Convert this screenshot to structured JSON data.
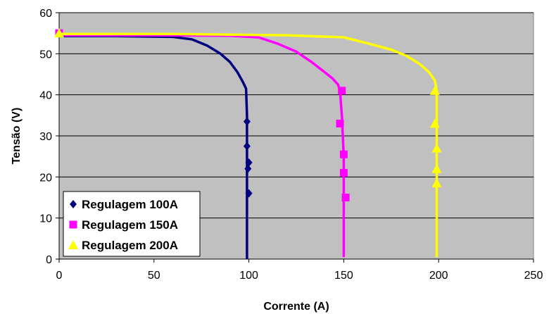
{
  "chart_data": {
    "type": "line",
    "xlabel": "Corrente (A)",
    "ylabel": "Tensão (V)",
    "xlim": [
      0,
      250
    ],
    "ylim": [
      0,
      60
    ],
    "xticks": [
      "0",
      "50",
      "100",
      "150",
      "200",
      "250"
    ],
    "yticks": [
      "0",
      "10",
      "20",
      "30",
      "40",
      "50",
      "60"
    ],
    "grid": "horizontal",
    "plot_background": "#c0c0c0",
    "legend_position": "bottom-left",
    "series": [
      {
        "name": "Regulagem 100A",
        "color": "#000080",
        "marker": "diamond",
        "curve": [
          [
            0,
            54.3
          ],
          [
            30,
            54.3
          ],
          [
            60,
            54.1
          ],
          [
            70,
            53.5
          ],
          [
            78,
            52.0
          ],
          [
            85,
            50.0
          ],
          [
            90,
            48.0
          ],
          [
            94,
            45.5
          ],
          [
            97,
            43.0
          ],
          [
            98.5,
            41.5
          ],
          [
            99,
            35.0
          ],
          [
            99,
            25.0
          ],
          [
            99,
            15.0
          ],
          [
            99,
            5.0
          ],
          [
            99,
            0
          ]
        ],
        "markers": [
          [
            99,
            33.5
          ],
          [
            99,
            27.5
          ],
          [
            100,
            23.5
          ],
          [
            99.5,
            22.0
          ],
          [
            100,
            16.0
          ]
        ]
      },
      {
        "name": "Regulagem 150A",
        "color": "#ff00ff",
        "marker": "square",
        "curve": [
          [
            0,
            54.5
          ],
          [
            50,
            54.5
          ],
          [
            90,
            54.4
          ],
          [
            105,
            54.0
          ],
          [
            115,
            52.5
          ],
          [
            125,
            50.5
          ],
          [
            133,
            48.0
          ],
          [
            140,
            45.5
          ],
          [
            144,
            44.0
          ],
          [
            147,
            42.5
          ],
          [
            148,
            41.0
          ],
          [
            149,
            35.0
          ],
          [
            150,
            25.0
          ],
          [
            150,
            15.0
          ],
          [
            150,
            5.0
          ],
          [
            150,
            0.5
          ]
        ],
        "markers": [
          [
            0,
            55.0
          ],
          [
            149,
            41.0
          ],
          [
            148,
            33.0
          ],
          [
            150,
            25.5
          ],
          [
            150,
            21.0
          ],
          [
            151,
            15.0
          ]
        ]
      },
      {
        "name": "Regulagem 200A",
        "color": "#ffff00",
        "marker": "triangle",
        "curve": [
          [
            0,
            54.8
          ],
          [
            60,
            54.8
          ],
          [
            120,
            54.5
          ],
          [
            150,
            54.0
          ],
          [
            163,
            52.5
          ],
          [
            175,
            51.0
          ],
          [
            183,
            49.5
          ],
          [
            190,
            47.5
          ],
          [
            195,
            45.5
          ],
          [
            198,
            43.5
          ],
          [
            199,
            41.0
          ],
          [
            199,
            30.0
          ],
          [
            199,
            15.0
          ],
          [
            199,
            5.0
          ],
          [
            199,
            0.5
          ]
        ],
        "markers": [
          [
            0,
            55.0
          ],
          [
            198,
            41.0
          ],
          [
            198,
            33.0
          ],
          [
            199,
            27.0
          ],
          [
            199,
            22.0
          ],
          [
            199,
            18.5
          ]
        ]
      }
    ]
  }
}
